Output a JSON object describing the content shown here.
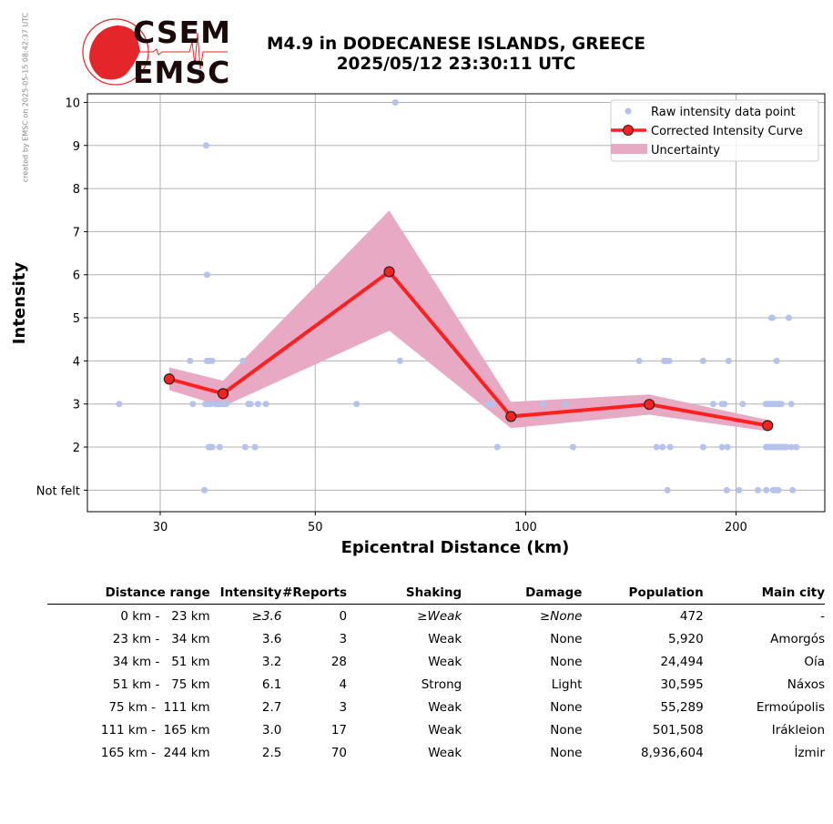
{
  "credit": "created by EMSC on 2025-05-15 08:42:37 UTC",
  "logo": {
    "top": "CSEM",
    "bottom": "EMSC"
  },
  "title": {
    "line1": "M4.9 in DODECANESE ISLANDS, GREECE",
    "line2": "2025/05/12 23:30:11 UTC"
  },
  "colors": {
    "points": "#b4c2ec",
    "curve": "#ff2020",
    "band": "#e8a9c4",
    "marker_edge": "#222222"
  },
  "chart_data": {
    "type": "line",
    "xlabel": "Epicentral Distance (km)",
    "ylabel": "Intensity",
    "xscale": "log",
    "xlim": [
      23.6,
      268
    ],
    "ylim": [
      0.5,
      10.2
    ],
    "grid": true,
    "xticks": [
      {
        "v": 30,
        "label": "30"
      },
      {
        "v": 50,
        "label": "50"
      },
      {
        "v": 100,
        "label": "100"
      },
      {
        "v": 200,
        "label": "200"
      }
    ],
    "yticks": [
      {
        "v": 1,
        "label": "Not felt"
      },
      {
        "v": 2,
        "label": "2"
      },
      {
        "v": 3,
        "label": "3"
      },
      {
        "v": 4,
        "label": "4"
      },
      {
        "v": 5,
        "label": "5"
      },
      {
        "v": 6,
        "label": "6"
      },
      {
        "v": 7,
        "label": "7"
      },
      {
        "v": 8,
        "label": "8"
      },
      {
        "v": 9,
        "label": "9"
      },
      {
        "v": 10,
        "label": "10"
      }
    ],
    "legend": {
      "placement": "top-right",
      "items": [
        "Raw intensity data point",
        "Corrected Intensity Curve",
        "Uncertainty"
      ]
    },
    "curve": {
      "x": [
        30.9,
        36.9,
        63.8,
        95.3,
        150.3,
        222
      ],
      "y": [
        3.58,
        3.24,
        6.07,
        2.71,
        2.99,
        2.5
      ]
    },
    "uncertainty": {
      "upper": [
        3.85,
        3.54,
        7.49,
        3.05,
        3.22,
        2.63
      ],
      "lower": [
        3.32,
        2.94,
        4.7,
        2.44,
        2.75,
        2.37
      ]
    },
    "raw_points": [
      [
        65.1,
        10
      ],
      [
        34.9,
        9
      ],
      [
        35.0,
        6
      ],
      [
        224.7,
        5
      ],
      [
        225.5,
        5
      ],
      [
        238,
        5
      ],
      [
        33.1,
        4
      ],
      [
        35,
        4
      ],
      [
        35.3,
        4
      ],
      [
        35.6,
        4
      ],
      [
        39.4,
        4
      ],
      [
        66.1,
        4
      ],
      [
        145.4,
        4
      ],
      [
        157.8,
        4
      ],
      [
        158.8,
        4
      ],
      [
        160.5,
        4
      ],
      [
        179.5,
        4
      ],
      [
        195.2,
        4
      ],
      [
        228.7,
        4
      ],
      [
        26.2,
        3
      ],
      [
        33.4,
        3
      ],
      [
        34.8,
        3
      ],
      [
        35.2,
        3
      ],
      [
        35.4,
        3
      ],
      [
        36,
        3
      ],
      [
        36.2,
        3
      ],
      [
        36.5,
        3
      ],
      [
        36.8,
        3
      ],
      [
        37,
        3
      ],
      [
        37.3,
        3
      ],
      [
        40.1,
        3
      ],
      [
        40.4,
        3
      ],
      [
        41.4,
        3
      ],
      [
        42.5,
        3
      ],
      [
        57.3,
        3
      ],
      [
        88.4,
        3
      ],
      [
        89.8,
        3
      ],
      [
        105.9,
        3
      ],
      [
        114,
        3
      ],
      [
        185.5,
        3
      ],
      [
        191,
        3
      ],
      [
        192.5,
        3
      ],
      [
        204.5,
        3
      ],
      [
        220.7,
        3
      ],
      [
        222,
        3
      ],
      [
        223.5,
        3
      ],
      [
        225,
        3
      ],
      [
        226.5,
        3
      ],
      [
        228,
        3
      ],
      [
        229.5,
        3
      ],
      [
        231,
        3
      ],
      [
        232.3,
        3
      ],
      [
        240,
        3
      ],
      [
        35.2,
        2
      ],
      [
        35.4,
        2
      ],
      [
        35.6,
        2
      ],
      [
        36.5,
        2
      ],
      [
        39.7,
        2
      ],
      [
        41,
        2
      ],
      [
        91.1,
        2
      ],
      [
        116.9,
        2
      ],
      [
        154,
        2
      ],
      [
        157,
        2
      ],
      [
        161,
        2
      ],
      [
        179.5,
        2
      ],
      [
        191,
        2
      ],
      [
        194.5,
        2
      ],
      [
        221,
        2
      ],
      [
        222.5,
        2
      ],
      [
        224,
        2
      ],
      [
        225.5,
        2
      ],
      [
        227,
        2
      ],
      [
        228.5,
        2
      ],
      [
        230,
        2
      ],
      [
        231.5,
        2
      ],
      [
        233,
        2
      ],
      [
        234.5,
        2
      ],
      [
        236,
        2
      ],
      [
        240,
        2
      ],
      [
        244,
        2
      ],
      [
        34.7,
        1
      ],
      [
        159.6,
        1
      ],
      [
        194,
        1
      ],
      [
        202,
        1
      ],
      [
        215,
        1
      ],
      [
        221,
        1
      ],
      [
        226,
        1
      ],
      [
        228,
        1
      ],
      [
        230,
        1
      ],
      [
        241,
        1
      ]
    ]
  },
  "table": {
    "headers": [
      "Distance range",
      "Intensity",
      "#Reports",
      "Shaking",
      "Damage",
      "Population",
      "Main city"
    ],
    "rows": [
      [
        "  0 km -   23 km",
        "≥3.6",
        "0",
        "≥Weak",
        "≥None",
        "472",
        "-"
      ],
      [
        " 23 km -   34 km",
        "3.6",
        "3",
        "Weak",
        "None",
        "5,920",
        "Amorgós"
      ],
      [
        " 34 km -   51 km",
        "3.2",
        "28",
        "Weak",
        "None",
        "24,494",
        "Oía"
      ],
      [
        " 51 km -   75 km",
        "6.1",
        "4",
        "Strong",
        "Light",
        "30,595",
        "Náxos"
      ],
      [
        " 75 km -  111 km",
        "2.7",
        "3",
        "Weak",
        "None",
        "55,289",
        "Ermoúpolis"
      ],
      [
        "111 km -  165 km",
        "3.0",
        "17",
        "Weak",
        "None",
        "501,508",
        "Irákleion"
      ],
      [
        "165 km -  244 km",
        "2.5",
        "70",
        "Weak",
        "None",
        "8,936,604",
        "İzmir"
      ]
    ]
  }
}
